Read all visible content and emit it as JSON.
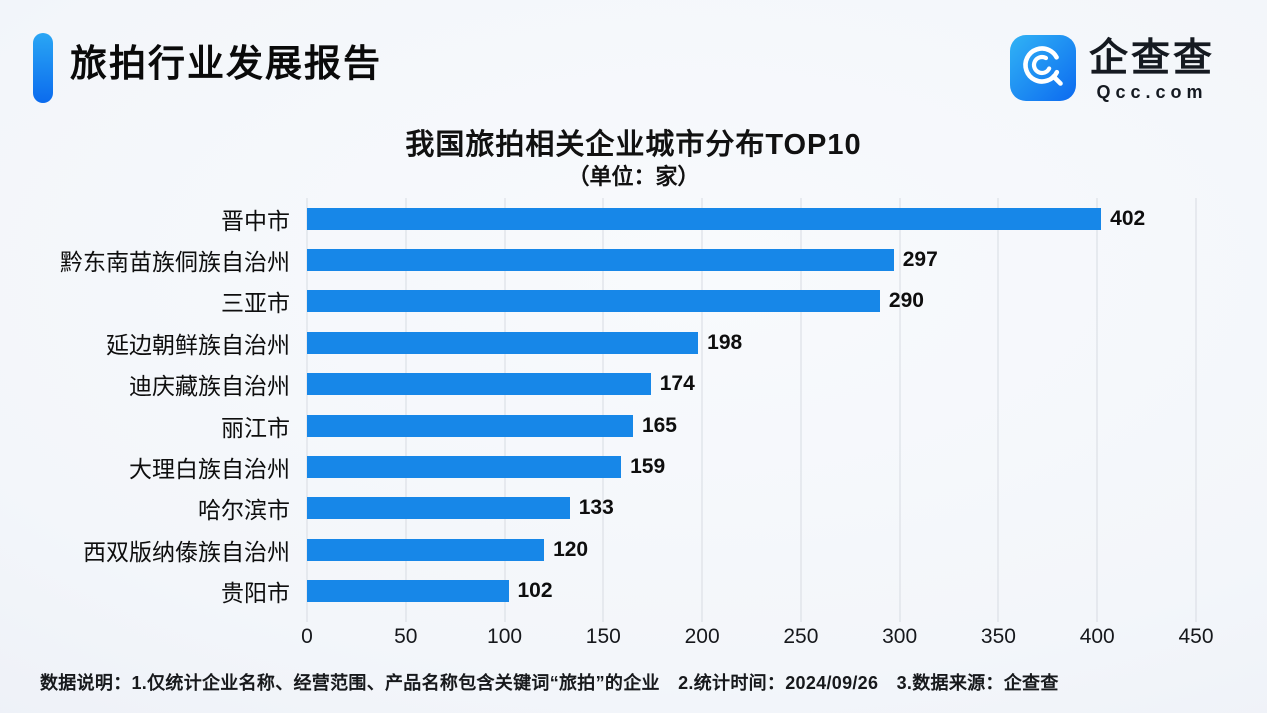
{
  "header": {
    "title": "旅拍行业发展报告",
    "accent_color": "#1283f2"
  },
  "logo": {
    "icon": "qcc-magnifier-icon",
    "icon_gradient": [
      "#31b3f5",
      "#0c6af0"
    ],
    "name": "企查查",
    "domain": "Qcc.com"
  },
  "chart_data": {
    "type": "bar",
    "orientation": "horizontal",
    "title": "我国旅拍相关企业城市分布TOP10",
    "subtitle": "（单位：家）",
    "categories": [
      "晋中市",
      "黔东南苗族侗族自治州",
      "三亚市",
      "延边朝鲜族自治州",
      "迪庆藏族自治州",
      "丽江市",
      "大理白族自治州",
      "哈尔滨市",
      "西双版纳傣族自治州",
      "贵阳市"
    ],
    "values": [
      402,
      297,
      290,
      198,
      174,
      165,
      159,
      133,
      120,
      102
    ],
    "xlim": [
      0,
      450
    ],
    "x_ticks": [
      0,
      50,
      100,
      150,
      200,
      250,
      300,
      350,
      400,
      450
    ],
    "bar_color": "#1787e8",
    "gridline_color": "#d7dbe2",
    "grid": true,
    "legend": false,
    "value_labels": true
  },
  "footer": {
    "note": "数据说明：1.仅统计企业名称、经营范围、产品名称包含关键词“旅拍”的企业　2.统计时间：2024/09/26　3.数据来源：企查查"
  }
}
